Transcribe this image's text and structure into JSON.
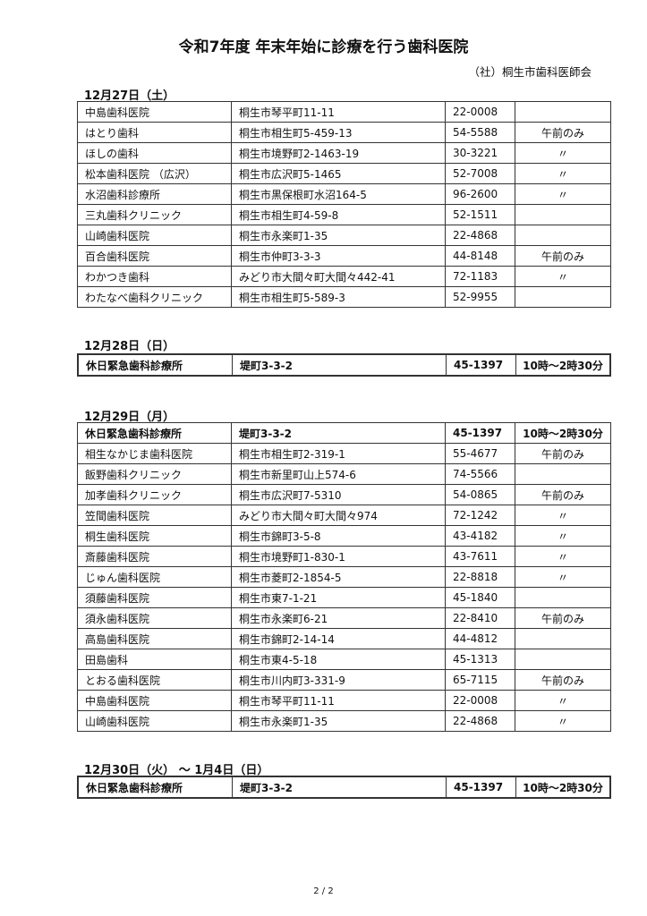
{
  "title": "令和7年度 年末年始に診療を行う歯科医院",
  "organization": "（社）桐生市歯科医師会",
  "sections": [
    {
      "heading": "12月27日（土）",
      "rows": [
        {
          "name": "中島歯科医院",
          "address": "桐生市琴平町11-11",
          "phone": "22-0008",
          "note": ""
        },
        {
          "name": "はとり歯科",
          "address": "桐生市相生町5-459-13",
          "phone": "54-5588",
          "note": "午前のみ"
        },
        {
          "name": "ほしの歯科",
          "address": "桐生市境野町2-1463-19",
          "phone": "30-3221",
          "note": "〃"
        },
        {
          "name": "松本歯科医院 （広沢）",
          "address": "桐生市広沢町5-1465",
          "phone": "52-7008",
          "note": "〃"
        },
        {
          "name": "水沼歯科診療所",
          "address": "桐生市黒保根町水沼164-5",
          "phone": "96-2600",
          "note": "〃"
        },
        {
          "name": "三丸歯科クリニック",
          "address": "桐生市相生町4-59-8",
          "phone": "52-1511",
          "note": ""
        },
        {
          "name": "山崎歯科医院",
          "address": "桐生市永楽町1-35",
          "phone": "22-4868",
          "note": ""
        },
        {
          "name": "百合歯科医院",
          "address": "桐生市仲町3-3-3",
          "phone": "44-8148",
          "note": "午前のみ"
        },
        {
          "name": "わかつき歯科",
          "address": "みどり市大間々町大間々442-41",
          "phone": "72-1183",
          "note": "〃"
        },
        {
          "name": "わたなべ歯科クリニック",
          "address": "桐生市相生町5-589-3",
          "phone": "52-9955",
          "note": ""
        }
      ]
    },
    {
      "heading": "12月28日（日）",
      "rows": [
        {
          "name": "休日緊急歯科診療所",
          "address": "堤町3-3-2",
          "phone": "45-1397",
          "note": "10時～2時30分",
          "emergency": true
        }
      ]
    },
    {
      "heading": "12月29日（月）",
      "rows": [
        {
          "name": "休日緊急歯科診療所",
          "address": "堤町3-3-2",
          "phone": "45-1397",
          "note": "10時～2時30分",
          "emergency": true
        },
        {
          "name": "相生なかじま歯科医院",
          "address": "桐生市相生町2-319-1",
          "phone": "55-4677",
          "note": "午前のみ"
        },
        {
          "name": "飯野歯科クリニック",
          "address": "桐生市新里町山上574-6",
          "phone": "74-5566",
          "note": ""
        },
        {
          "name": "加孝歯科クリニック",
          "address": "桐生市広沢町7-5310",
          "phone": "54-0865",
          "note": "午前のみ"
        },
        {
          "name": "笠間歯科医院",
          "address": "みどり市大間々町大間々974",
          "phone": "72-1242",
          "note": "〃"
        },
        {
          "name": "桐生歯科医院",
          "address": "桐生市錦町3-5-8",
          "phone": "43-4182",
          "note": "〃"
        },
        {
          "name": "斎藤歯科医院",
          "address": "桐生市境野町1-830-1",
          "phone": "43-7611",
          "note": "〃"
        },
        {
          "name": "じゅん歯科医院",
          "address": "桐生市菱町2-1854-5",
          "phone": "22-8818",
          "note": "〃"
        },
        {
          "name": "須藤歯科医院",
          "address": "桐生市東7-1-21",
          "phone": "45-1840",
          "note": ""
        },
        {
          "name": "須永歯科医院",
          "address": "桐生市永楽町6-21",
          "phone": "22-8410",
          "note": "午前のみ"
        },
        {
          "name": "高島歯科医院",
          "address": "桐生市錦町2-14-14",
          "phone": "44-4812",
          "note": ""
        },
        {
          "name": "田島歯科",
          "address": "桐生市東4-5-18",
          "phone": "45-1313",
          "note": ""
        },
        {
          "name": "とおる歯科医院",
          "address": "桐生市川内町3-331-9",
          "phone": "65-7115",
          "note": "午前のみ"
        },
        {
          "name": "中島歯科医院",
          "address": "桐生市琴平町11-11",
          "phone": "22-0008",
          "note": "〃"
        },
        {
          "name": "山崎歯科医院",
          "address": "桐生市永楽町1-35",
          "phone": "22-4868",
          "note": "〃"
        }
      ]
    },
    {
      "heading": "12月30日（火） ～ 1月4日（日）",
      "rows": [
        {
          "name": "休日緊急歯科診療所",
          "address": "堤町3-3-2",
          "phone": "45-1397",
          "note": "10時～2時30分",
          "emergency": true
        }
      ]
    }
  ],
  "footer": "2 / 2"
}
